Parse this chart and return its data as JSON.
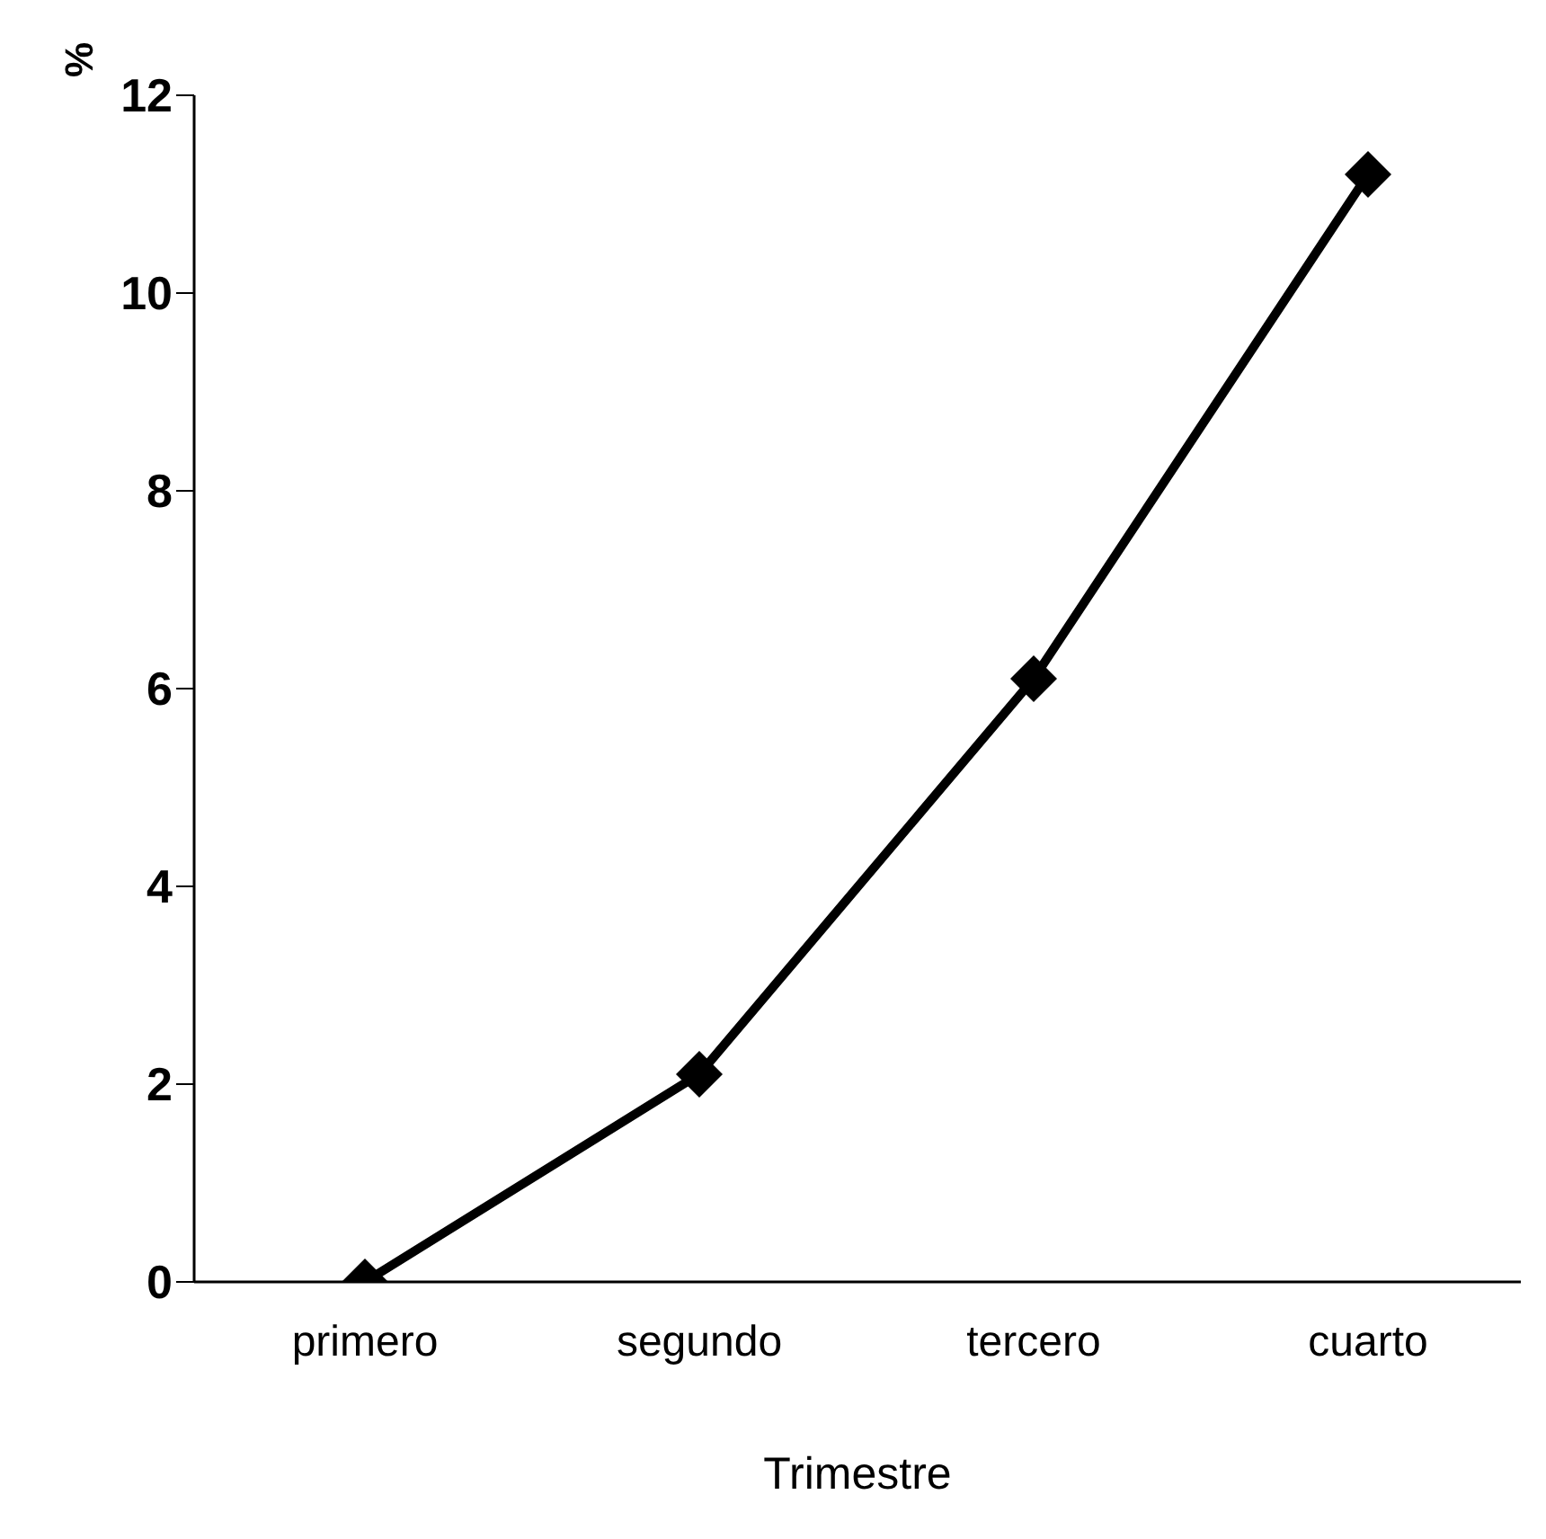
{
  "chart_data": {
    "type": "line",
    "xlabel": "Trimestre",
    "ylabel": "%",
    "categories": [
      "primero",
      "segundo",
      "tercero",
      "cuarto"
    ],
    "series": [
      {
        "color": "#000000",
        "values": [
          0,
          2.1,
          6.1,
          11.2
        ]
      }
    ],
    "ylim": [
      0,
      12
    ],
    "yticks": [
      0,
      2,
      4,
      6,
      8,
      10,
      12
    ],
    "marker": "diamond",
    "line_style": "solid"
  }
}
